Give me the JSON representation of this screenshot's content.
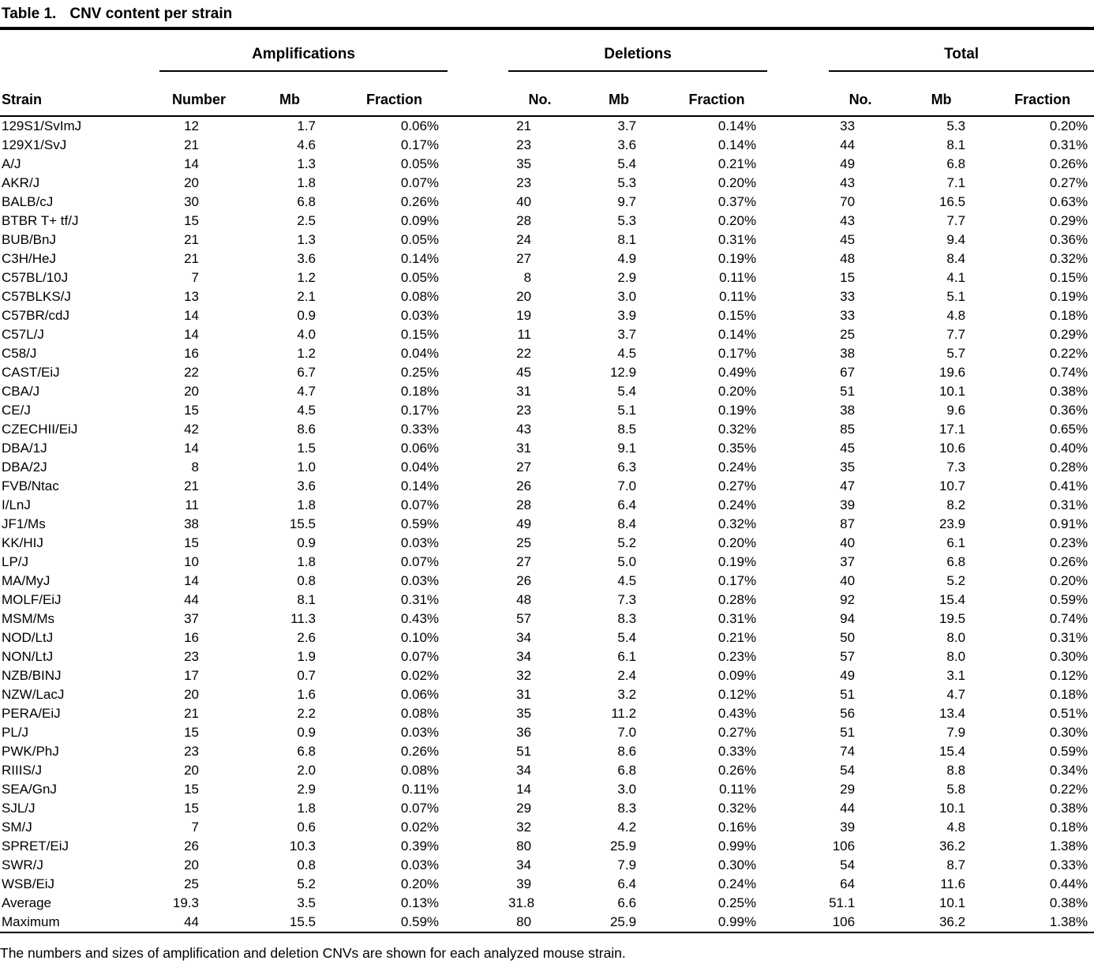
{
  "title": {
    "label": "Table 1.",
    "caption": "CNV content per strain"
  },
  "footnote": "The numbers and sizes of amplification and deletion CNVs are shown for each analyzed mouse strain.",
  "table": {
    "strain_header": "Strain",
    "groups": [
      {
        "label": "Amplifications",
        "columns": [
          "Number",
          "Mb",
          "Fraction"
        ]
      },
      {
        "label": "Deletions",
        "columns": [
          "No.",
          "Mb",
          "Fraction"
        ]
      },
      {
        "label": "Total",
        "columns": [
          "No.",
          "Mb",
          "Fraction"
        ]
      }
    ],
    "rows": [
      {
        "strain": "129S1/SvImJ",
        "amplifications": [
          "12",
          "1.7",
          "0.06%"
        ],
        "deletions": [
          "21",
          "3.7",
          "0.14%"
        ],
        "total": [
          "33",
          "5.3",
          "0.20%"
        ]
      },
      {
        "strain": "129X1/SvJ",
        "amplifications": [
          "21",
          "4.6",
          "0.17%"
        ],
        "deletions": [
          "23",
          "3.6",
          "0.14%"
        ],
        "total": [
          "44",
          "8.1",
          "0.31%"
        ]
      },
      {
        "strain": "A/J",
        "amplifications": [
          "14",
          "1.3",
          "0.05%"
        ],
        "deletions": [
          "35",
          "5.4",
          "0.21%"
        ],
        "total": [
          "49",
          "6.8",
          "0.26%"
        ]
      },
      {
        "strain": "AKR/J",
        "amplifications": [
          "20",
          "1.8",
          "0.07%"
        ],
        "deletions": [
          "23",
          "5.3",
          "0.20%"
        ],
        "total": [
          "43",
          "7.1",
          "0.27%"
        ]
      },
      {
        "strain": "BALB/cJ",
        "amplifications": [
          "30",
          "6.8",
          "0.26%"
        ],
        "deletions": [
          "40",
          "9.7",
          "0.37%"
        ],
        "total": [
          "70",
          "16.5",
          "0.63%"
        ]
      },
      {
        "strain": "BTBR T+ tf/J",
        "amplifications": [
          "15",
          "2.5",
          "0.09%"
        ],
        "deletions": [
          "28",
          "5.3",
          "0.20%"
        ],
        "total": [
          "43",
          "7.7",
          "0.29%"
        ]
      },
      {
        "strain": "BUB/BnJ",
        "amplifications": [
          "21",
          "1.3",
          "0.05%"
        ],
        "deletions": [
          "24",
          "8.1",
          "0.31%"
        ],
        "total": [
          "45",
          "9.4",
          "0.36%"
        ]
      },
      {
        "strain": "C3H/HeJ",
        "amplifications": [
          "21",
          "3.6",
          "0.14%"
        ],
        "deletions": [
          "27",
          "4.9",
          "0.19%"
        ],
        "total": [
          "48",
          "8.4",
          "0.32%"
        ]
      },
      {
        "strain": "C57BL/10J",
        "amplifications": [
          "7",
          "1.2",
          "0.05%"
        ],
        "deletions": [
          "8",
          "2.9",
          "0.11%"
        ],
        "total": [
          "15",
          "4.1",
          "0.15%"
        ]
      },
      {
        "strain": "C57BLKS/J",
        "amplifications": [
          "13",
          "2.1",
          "0.08%"
        ],
        "deletions": [
          "20",
          "3.0",
          "0.11%"
        ],
        "total": [
          "33",
          "5.1",
          "0.19%"
        ]
      },
      {
        "strain": "C57BR/cdJ",
        "amplifications": [
          "14",
          "0.9",
          "0.03%"
        ],
        "deletions": [
          "19",
          "3.9",
          "0.15%"
        ],
        "total": [
          "33",
          "4.8",
          "0.18%"
        ]
      },
      {
        "strain": "C57L/J",
        "amplifications": [
          "14",
          "4.0",
          "0.15%"
        ],
        "deletions": [
          "11",
          "3.7",
          "0.14%"
        ],
        "total": [
          "25",
          "7.7",
          "0.29%"
        ]
      },
      {
        "strain": "C58/J",
        "amplifications": [
          "16",
          "1.2",
          "0.04%"
        ],
        "deletions": [
          "22",
          "4.5",
          "0.17%"
        ],
        "total": [
          "38",
          "5.7",
          "0.22%"
        ]
      },
      {
        "strain": "CAST/EiJ",
        "amplifications": [
          "22",
          "6.7",
          "0.25%"
        ],
        "deletions": [
          "45",
          "12.9",
          "0.49%"
        ],
        "total": [
          "67",
          "19.6",
          "0.74%"
        ]
      },
      {
        "strain": "CBA/J",
        "amplifications": [
          "20",
          "4.7",
          "0.18%"
        ],
        "deletions": [
          "31",
          "5.4",
          "0.20%"
        ],
        "total": [
          "51",
          "10.1",
          "0.38%"
        ]
      },
      {
        "strain": "CE/J",
        "amplifications": [
          "15",
          "4.5",
          "0.17%"
        ],
        "deletions": [
          "23",
          "5.1",
          "0.19%"
        ],
        "total": [
          "38",
          "9.6",
          "0.36%"
        ]
      },
      {
        "strain": "CZECHII/EiJ",
        "amplifications": [
          "42",
          "8.6",
          "0.33%"
        ],
        "deletions": [
          "43",
          "8.5",
          "0.32%"
        ],
        "total": [
          "85",
          "17.1",
          "0.65%"
        ]
      },
      {
        "strain": "DBA/1J",
        "amplifications": [
          "14",
          "1.5",
          "0.06%"
        ],
        "deletions": [
          "31",
          "9.1",
          "0.35%"
        ],
        "total": [
          "45",
          "10.6",
          "0.40%"
        ]
      },
      {
        "strain": "DBA/2J",
        "amplifications": [
          "8",
          "1.0",
          "0.04%"
        ],
        "deletions": [
          "27",
          "6.3",
          "0.24%"
        ],
        "total": [
          "35",
          "7.3",
          "0.28%"
        ]
      },
      {
        "strain": "FVB/Ntac",
        "amplifications": [
          "21",
          "3.6",
          "0.14%"
        ],
        "deletions": [
          "26",
          "7.0",
          "0.27%"
        ],
        "total": [
          "47",
          "10.7",
          "0.41%"
        ]
      },
      {
        "strain": "I/LnJ",
        "amplifications": [
          "11",
          "1.8",
          "0.07%"
        ],
        "deletions": [
          "28",
          "6.4",
          "0.24%"
        ],
        "total": [
          "39",
          "8.2",
          "0.31%"
        ]
      },
      {
        "strain": "JF1/Ms",
        "amplifications": [
          "38",
          "15.5",
          "0.59%"
        ],
        "deletions": [
          "49",
          "8.4",
          "0.32%"
        ],
        "total": [
          "87",
          "23.9",
          "0.91%"
        ]
      },
      {
        "strain": "KK/HIJ",
        "amplifications": [
          "15",
          "0.9",
          "0.03%"
        ],
        "deletions": [
          "25",
          "5.2",
          "0.20%"
        ],
        "total": [
          "40",
          "6.1",
          "0.23%"
        ]
      },
      {
        "strain": "LP/J",
        "amplifications": [
          "10",
          "1.8",
          "0.07%"
        ],
        "deletions": [
          "27",
          "5.0",
          "0.19%"
        ],
        "total": [
          "37",
          "6.8",
          "0.26%"
        ]
      },
      {
        "strain": "MA/MyJ",
        "amplifications": [
          "14",
          "0.8",
          "0.03%"
        ],
        "deletions": [
          "26",
          "4.5",
          "0.17%"
        ],
        "total": [
          "40",
          "5.2",
          "0.20%"
        ]
      },
      {
        "strain": "MOLF/EiJ",
        "amplifications": [
          "44",
          "8.1",
          "0.31%"
        ],
        "deletions": [
          "48",
          "7.3",
          "0.28%"
        ],
        "total": [
          "92",
          "15.4",
          "0.59%"
        ]
      },
      {
        "strain": "MSM/Ms",
        "amplifications": [
          "37",
          "11.3",
          "0.43%"
        ],
        "deletions": [
          "57",
          "8.3",
          "0.31%"
        ],
        "total": [
          "94",
          "19.5",
          "0.74%"
        ]
      },
      {
        "strain": "NOD/LtJ",
        "amplifications": [
          "16",
          "2.6",
          "0.10%"
        ],
        "deletions": [
          "34",
          "5.4",
          "0.21%"
        ],
        "total": [
          "50",
          "8.0",
          "0.31%"
        ]
      },
      {
        "strain": "NON/LtJ",
        "amplifications": [
          "23",
          "1.9",
          "0.07%"
        ],
        "deletions": [
          "34",
          "6.1",
          "0.23%"
        ],
        "total": [
          "57",
          "8.0",
          "0.30%"
        ]
      },
      {
        "strain": "NZB/BINJ",
        "amplifications": [
          "17",
          "0.7",
          "0.02%"
        ],
        "deletions": [
          "32",
          "2.4",
          "0.09%"
        ],
        "total": [
          "49",
          "3.1",
          "0.12%"
        ]
      },
      {
        "strain": "NZW/LacJ",
        "amplifications": [
          "20",
          "1.6",
          "0.06%"
        ],
        "deletions": [
          "31",
          "3.2",
          "0.12%"
        ],
        "total": [
          "51",
          "4.7",
          "0.18%"
        ]
      },
      {
        "strain": "PERA/EiJ",
        "amplifications": [
          "21",
          "2.2",
          "0.08%"
        ],
        "deletions": [
          "35",
          "11.2",
          "0.43%"
        ],
        "total": [
          "56",
          "13.4",
          "0.51%"
        ]
      },
      {
        "strain": "PL/J",
        "amplifications": [
          "15",
          "0.9",
          "0.03%"
        ],
        "deletions": [
          "36",
          "7.0",
          "0.27%"
        ],
        "total": [
          "51",
          "7.9",
          "0.30%"
        ]
      },
      {
        "strain": "PWK/PhJ",
        "amplifications": [
          "23",
          "6.8",
          "0.26%"
        ],
        "deletions": [
          "51",
          "8.6",
          "0.33%"
        ],
        "total": [
          "74",
          "15.4",
          "0.59%"
        ]
      },
      {
        "strain": "RIIIS/J",
        "amplifications": [
          "20",
          "2.0",
          "0.08%"
        ],
        "deletions": [
          "34",
          "6.8",
          "0.26%"
        ],
        "total": [
          "54",
          "8.8",
          "0.34%"
        ]
      },
      {
        "strain": "SEA/GnJ",
        "amplifications": [
          "15",
          "2.9",
          "0.11%"
        ],
        "deletions": [
          "14",
          "3.0",
          "0.11%"
        ],
        "total": [
          "29",
          "5.8",
          "0.22%"
        ]
      },
      {
        "strain": "SJL/J",
        "amplifications": [
          "15",
          "1.8",
          "0.07%"
        ],
        "deletions": [
          "29",
          "8.3",
          "0.32%"
        ],
        "total": [
          "44",
          "10.1",
          "0.38%"
        ]
      },
      {
        "strain": "SM/J",
        "amplifications": [
          "7",
          "0.6",
          "0.02%"
        ],
        "deletions": [
          "32",
          "4.2",
          "0.16%"
        ],
        "total": [
          "39",
          "4.8",
          "0.18%"
        ]
      },
      {
        "strain": "SPRET/EiJ",
        "amplifications": [
          "26",
          "10.3",
          "0.39%"
        ],
        "deletions": [
          "80",
          "25.9",
          "0.99%"
        ],
        "total": [
          "106",
          "36.2",
          "1.38%"
        ]
      },
      {
        "strain": "SWR/J",
        "amplifications": [
          "20",
          "0.8",
          "0.03%"
        ],
        "deletions": [
          "34",
          "7.9",
          "0.30%"
        ],
        "total": [
          "54",
          "8.7",
          "0.33%"
        ]
      },
      {
        "strain": "WSB/EiJ",
        "amplifications": [
          "25",
          "5.2",
          "0.20%"
        ],
        "deletions": [
          "39",
          "6.4",
          "0.24%"
        ],
        "total": [
          "64",
          "11.6",
          "0.44%"
        ]
      },
      {
        "strain": "Average",
        "amplifications": [
          "19.3",
          "3.5",
          "0.13%"
        ],
        "deletions": [
          "31.8",
          "6.6",
          "0.25%"
        ],
        "total": [
          "51.1",
          "10.1",
          "0.38%"
        ]
      },
      {
        "strain": "Maximum",
        "amplifications": [
          "44",
          "15.5",
          "0.59%"
        ],
        "deletions": [
          "80",
          "25.9",
          "0.99%"
        ],
        "total": [
          "106",
          "36.2",
          "1.38%"
        ]
      }
    ]
  }
}
